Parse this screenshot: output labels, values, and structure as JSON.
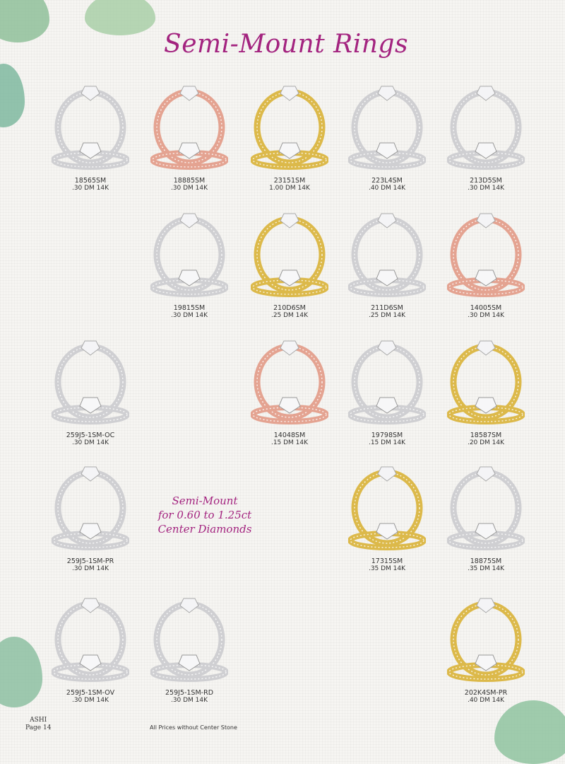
{
  "title": "Semi-Mount Rings",
  "side_text": [
    "Semi-Mount",
    "for 0.60 to 1.25ct",
    "Center Diamonds"
  ],
  "footer": {
    "brand": "ASHI",
    "page": "Page 14",
    "note": "All Prices without Center Stone"
  },
  "metal_colors": {
    "white": "#cfcfd2",
    "rose": "#e4a391",
    "yellow": "#dcb94a"
  },
  "accent_color": "#a3237f",
  "rings": [
    {
      "code": "18565SM",
      "desc": ".30 DM 14K",
      "metal": "white"
    },
    {
      "code": "18885SM",
      "desc": ".30 DM 14K",
      "metal": "rose"
    },
    {
      "code": "23151SM",
      "desc": "1.00 DM 14K",
      "metal": "yellow"
    },
    {
      "code": "223L4SM",
      "desc": ".40 DM 14K",
      "metal": "white"
    },
    {
      "code": "213D5SM",
      "desc": ".30 DM 14K",
      "metal": "white"
    },
    {
      "code": "19815SM",
      "desc": ".30 DM 14K",
      "metal": "white"
    },
    {
      "code": "210D6SM",
      "desc": ".25 DM 14K",
      "metal": "yellow"
    },
    {
      "code": "211D6SM",
      "desc": ".25 DM 14K",
      "metal": "white"
    },
    {
      "code": "14005SM",
      "desc": ".30 DM 14K",
      "metal": "rose"
    },
    {
      "code": "259J5-1SM-OC",
      "desc": ".30 DM  14K",
      "metal": "white"
    },
    {
      "code": "14048SM",
      "desc": ".15 DM 14K",
      "metal": "rose"
    },
    {
      "code": "19798SM",
      "desc": ".15 DM 14K",
      "metal": "white"
    },
    {
      "code": "18587SM",
      "desc": ".20 DM 14K",
      "metal": "yellow"
    },
    {
      "code": "259J5-1SM-PR",
      "desc": ".30 DM 14K",
      "metal": "white"
    },
    {
      "code": "17315SM",
      "desc": ".35 DM 14K",
      "metal": "yellow"
    },
    {
      "code": "18875SM",
      "desc": ".35 DM 14K",
      "metal": "white"
    },
    {
      "code": "259J5-1SM-OV",
      "desc": ".30 DM 14K",
      "metal": "white"
    },
    {
      "code": "259J5-1SM-RD",
      "desc": ".30 DM 14K",
      "metal": "white"
    },
    {
      "code": "202K4SM-PR",
      "desc": ".40 DM 14K",
      "metal": "yellow"
    }
  ]
}
